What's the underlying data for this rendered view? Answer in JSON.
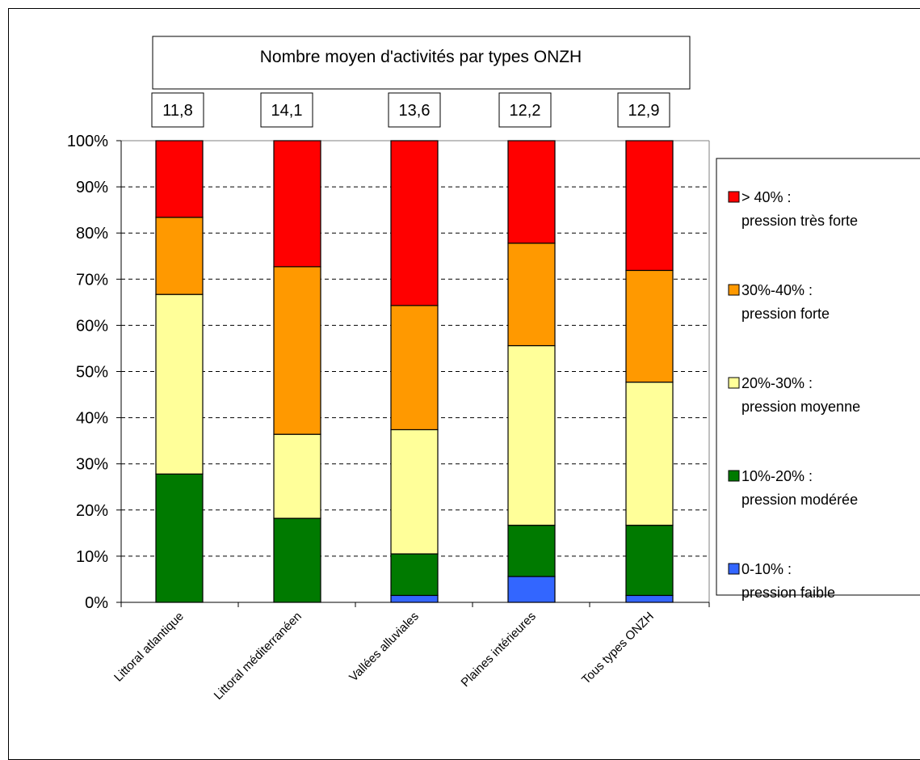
{
  "chart_data": {
    "type": "bar",
    "stacked": true,
    "percent": true,
    "title": "Nombre moyen d'activités par types ONZH",
    "categories": [
      "Littoral atlantique",
      "Littoral méditerranéen",
      "Vallées alluviales",
      "Plaines intérieures",
      "Tous types ONZH"
    ],
    "category_values": [
      "11,8",
      "14,1",
      "13,6",
      "12,2",
      "12,9"
    ],
    "yticks": [
      "0%",
      "10%",
      "20%",
      "30%",
      "40%",
      "50%",
      "60%",
      "70%",
      "80%",
      "90%",
      "100%"
    ],
    "ylim": [
      0,
      100
    ],
    "grid": "horizontal dashed",
    "legend_position": "right",
    "series": [
      {
        "name": "0-10% : pression faible",
        "color": "#3366ff",
        "values": [
          0,
          0,
          1.5,
          5.6,
          1.5
        ]
      },
      {
        "name": "10%-20% : pression modérée",
        "color": "#007a00",
        "values": [
          27.8,
          18.2,
          9.0,
          11.1,
          15.2
        ]
      },
      {
        "name": "20%-30% : pression moyenne",
        "color": "#ffff99",
        "values": [
          38.9,
          18.2,
          26.9,
          38.9,
          31.0
        ]
      },
      {
        "name": "30%-40% : pression forte",
        "color": "#ff9900",
        "values": [
          16.7,
          36.3,
          26.9,
          22.2,
          24.2
        ]
      },
      {
        "name": "> 40% : pression très forte",
        "color": "#ff0000",
        "values": [
          16.6,
          27.3,
          35.7,
          22.2,
          28.1
        ]
      }
    ],
    "legend": [
      {
        "line1": "> 40% :",
        "line2": "pression très forte",
        "color": "#ff0000"
      },
      {
        "line1": "30%-40% :",
        "line2": "pression forte",
        "color": "#ff9900"
      },
      {
        "line1": "20%-30% :",
        "line2": "pression moyenne",
        "color": "#ffff99"
      },
      {
        "line1": "10%-20% :",
        "line2": "pression modérée",
        "color": "#007a00"
      },
      {
        "line1": "0-10% :",
        "line2": "pression faible",
        "color": "#3366ff"
      }
    ]
  }
}
